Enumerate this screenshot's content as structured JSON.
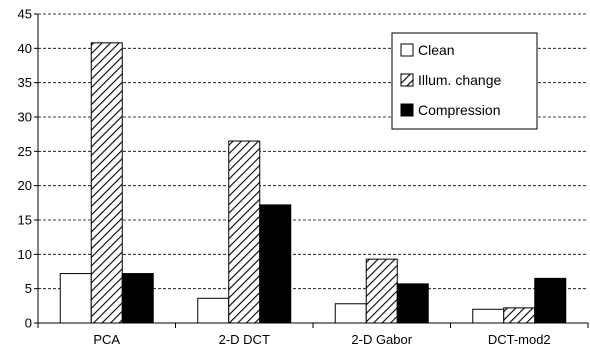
{
  "chart_data": {
    "type": "bar",
    "categories": [
      "PCA",
      "2-D DCT",
      "2-D Gabor",
      "DCT-mod2"
    ],
    "series": [
      {
        "name": "Clean",
        "values": [
          7.2,
          3.6,
          2.8,
          2.0
        ],
        "fill": "solid-white"
      },
      {
        "name": "Illum. change",
        "values": [
          40.8,
          26.5,
          9.3,
          2.2
        ],
        "fill": "diagonal-hatch"
      },
      {
        "name": "Compression",
        "values": [
          7.2,
          17.2,
          5.7,
          6.5
        ],
        "fill": "solid-black"
      }
    ],
    "title": "",
    "xlabel": "",
    "ylabel": "",
    "ylim": [
      0,
      45
    ],
    "yticks": [
      "0",
      "5",
      "10",
      "15",
      "20",
      "25",
      "30",
      "35",
      "40",
      "45"
    ],
    "grid": "horizontal dashed",
    "legend_position": "top-right"
  }
}
